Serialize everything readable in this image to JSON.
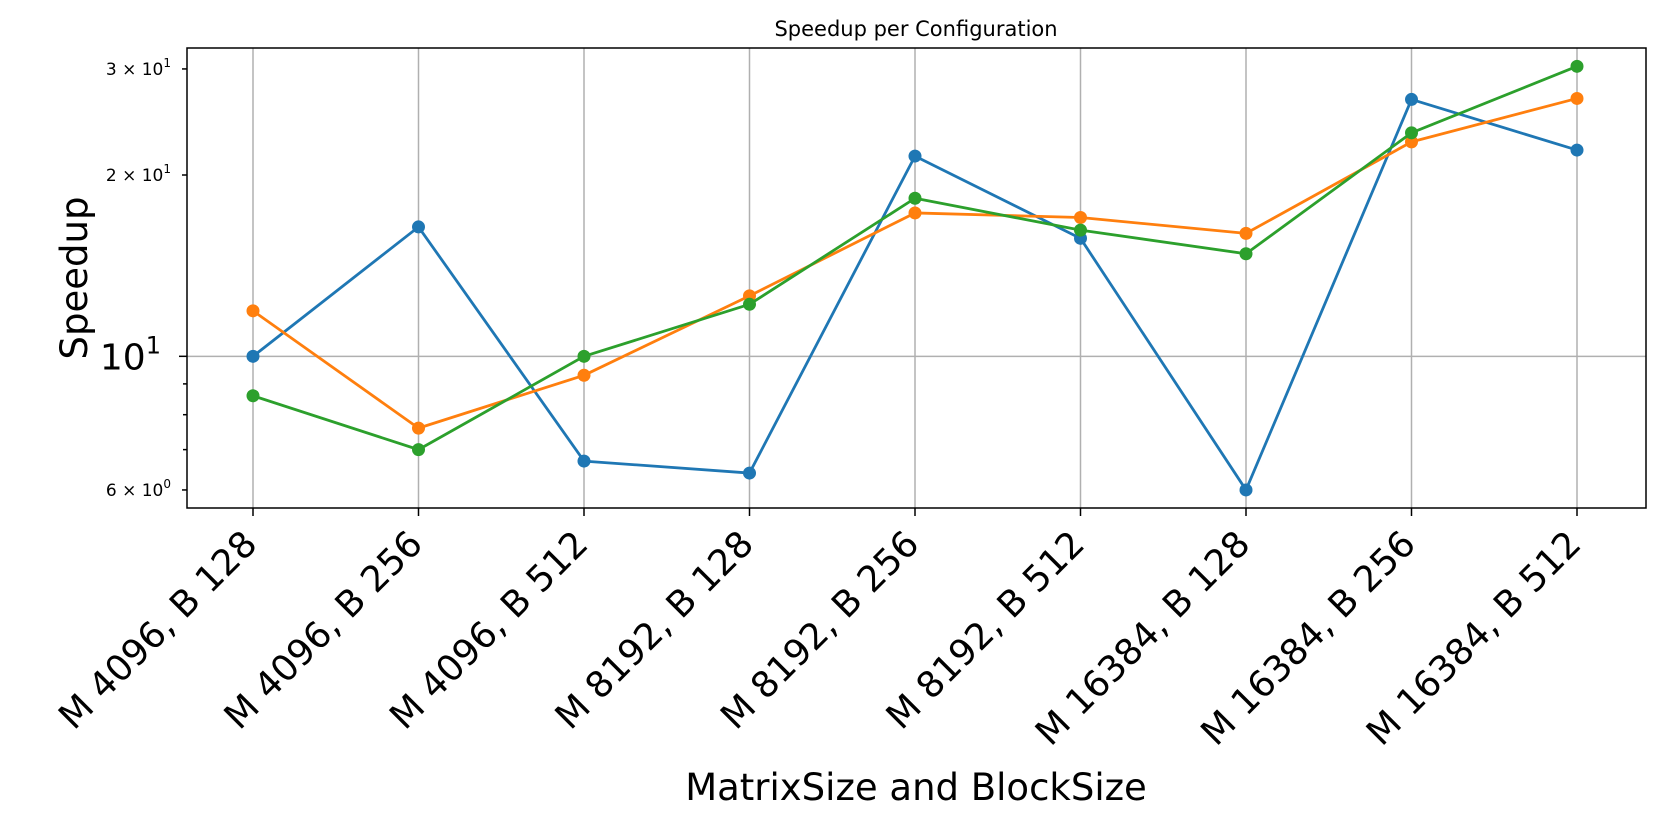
{
  "chart_data": {
    "type": "line",
    "title": "Speedup per Configuration",
    "xlabel": "MatrixSize and BlockSize",
    "ylabel": "Speedup",
    "yscale": "log",
    "ylim": [
      5.6,
      32.5
    ],
    "grid": true,
    "categories": [
      "M 4096, B 128",
      "M 4096, B 256",
      "M 4096, B 512",
      "M 8192, B 128",
      "M 8192, B 256",
      "M 8192, B 512",
      "M 16384, B 128",
      "M 16384, B 256",
      "M 16384, B 512"
    ],
    "yticks": [
      {
        "value": 6,
        "base": "6 × 10",
        "exp": "0",
        "style": "small"
      },
      {
        "value": 10,
        "base": "10",
        "exp": "1",
        "style": "big"
      },
      {
        "value": 20,
        "base": "2 × 10",
        "exp": "1",
        "style": "small"
      },
      {
        "value": 30,
        "base": "3 × 10",
        "exp": "1",
        "style": "small"
      }
    ],
    "series": [
      {
        "name": "series-blue",
        "color": "#1f77b4",
        "values": [
          10.0,
          16.4,
          6.7,
          6.4,
          21.5,
          15.7,
          6.0,
          26.7,
          22.0
        ]
      },
      {
        "name": "series-orange",
        "color": "#ff7f0e",
        "values": [
          11.9,
          7.6,
          9.3,
          12.6,
          17.3,
          17.0,
          16.0,
          22.7,
          26.8
        ]
      },
      {
        "name": "series-green",
        "color": "#2ca02c",
        "values": [
          8.6,
          7.0,
          10.0,
          12.2,
          18.3,
          16.2,
          14.8,
          23.5,
          30.3
        ]
      }
    ]
  }
}
